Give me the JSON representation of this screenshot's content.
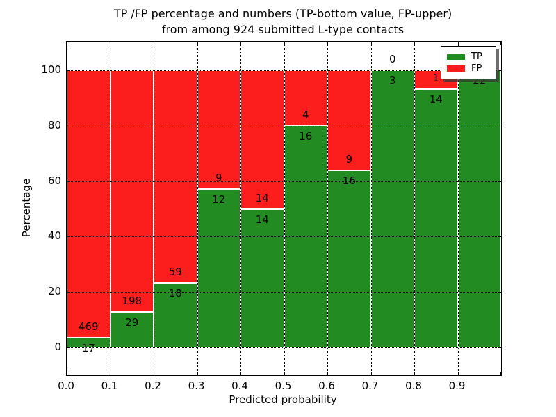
{
  "figure": {
    "title_line1": "TP /FP percentage and numbers (TP-bottom value, FP-upper)",
    "title_line2": "from among 924 submitted L-type contacts"
  },
  "chart_data": {
    "type": "bar",
    "stacked": true,
    "title": "TP /FP percentage and numbers (TP-bottom value, FP-upper)\nfrom among 924 submitted L-type contacts",
    "xlabel": "Predicted probability",
    "ylabel": "Percentage",
    "x_tick_labels": [
      "0.0",
      "0.1",
      "0.2",
      "0.3",
      "0.4",
      "0.5",
      "0.6",
      "0.7",
      "0.8",
      "0.9"
    ],
    "y_ticks": [
      0,
      20,
      40,
      60,
      80,
      100
    ],
    "xlim": [
      0.0,
      1.0
    ],
    "ylim": [
      -10.5,
      110.5
    ],
    "grid": true,
    "grid_style": "dotted",
    "total_contacts": 924,
    "legend": {
      "position": "upper-right",
      "entries": [
        {
          "label": "TP",
          "color": "#228b22"
        },
        {
          "label": "FP",
          "color": "#fc1d1d"
        }
      ]
    },
    "bins": [
      {
        "x_range": [
          0.0,
          0.1
        ],
        "tp": 17,
        "fp": 469,
        "tp_pct": 3.5
      },
      {
        "x_range": [
          0.1,
          0.2
        ],
        "tp": 29,
        "fp": 198,
        "tp_pct": 12.8
      },
      {
        "x_range": [
          0.2,
          0.3
        ],
        "tp": 18,
        "fp": 59,
        "tp_pct": 23.4
      },
      {
        "x_range": [
          0.3,
          0.4
        ],
        "tp": 12,
        "fp": 9,
        "tp_pct": 57.1
      },
      {
        "x_range": [
          0.4,
          0.5
        ],
        "tp": 14,
        "fp": 14,
        "tp_pct": 50.0
      },
      {
        "x_range": [
          0.5,
          0.6
        ],
        "tp": 16,
        "fp": 4,
        "tp_pct": 80.0
      },
      {
        "x_range": [
          0.6,
          0.7
        ],
        "tp": 16,
        "fp": 9,
        "tp_pct": 64.0
      },
      {
        "x_range": [
          0.7,
          0.8
        ],
        "tp": 3,
        "fp": 0,
        "tp_pct": 100.0
      },
      {
        "x_range": [
          0.8,
          0.9
        ],
        "tp": 14,
        "fp": 1,
        "tp_pct": 93.3
      },
      {
        "x_range": [
          0.9,
          1.0
        ],
        "tp": 22,
        "fp": 0,
        "tp_pct": 100.0
      }
    ]
  },
  "colors": {
    "tp_green": "#228b22",
    "fp_red": "#fc1d1d",
    "grid": "#000000",
    "background": "#ffffff",
    "text": "#000000"
  }
}
